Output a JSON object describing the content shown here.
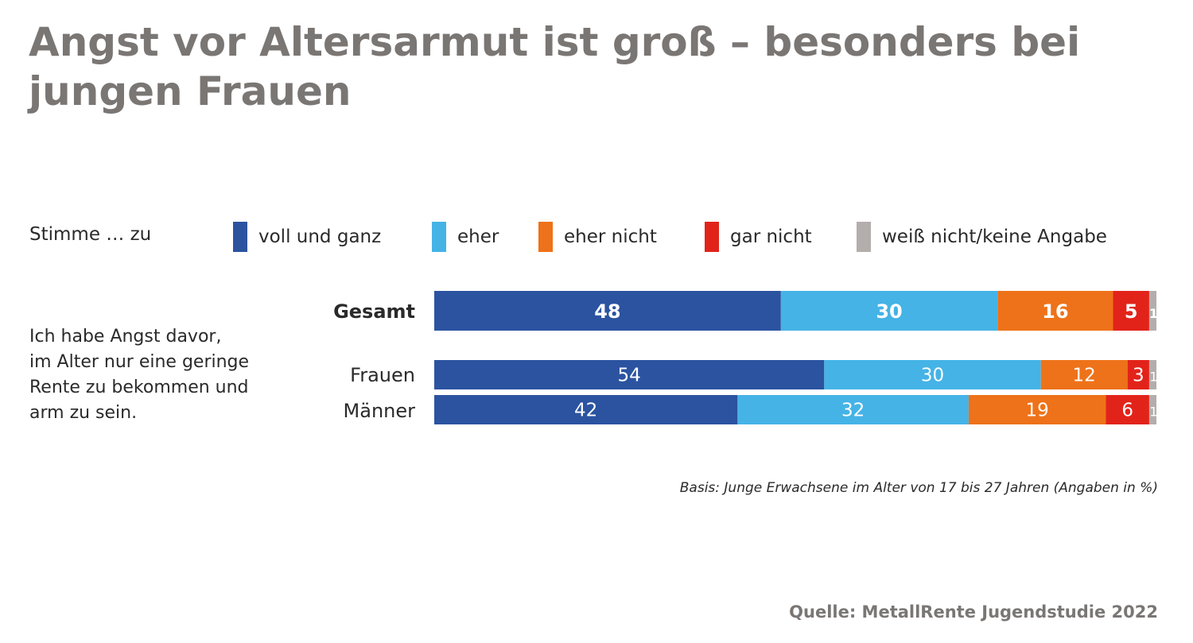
{
  "chart_data": {
    "type": "bar",
    "orientation": "horizontal",
    "stacked": true,
    "title": "Angst vor Altersarmut ist groß – besonders bei jungen Frauen",
    "question": "Ich habe Angst davor, im Alter nur eine geringe Rente zu bekommen und arm zu sein.",
    "legend_title": "Stimme … zu",
    "legend_position": "top",
    "categories": [
      "Gesamt",
      "Frauen",
      "Männer"
    ],
    "series": [
      {
        "name": "voll und ganz",
        "color": "#2b53a0",
        "values": [
          48,
          54,
          42
        ]
      },
      {
        "name": "eher",
        "color": "#45b3e6",
        "values": [
          30,
          30,
          32
        ]
      },
      {
        "name": "eher nicht",
        "color": "#ee7219",
        "values": [
          16,
          12,
          19
        ]
      },
      {
        "name": "gar nicht",
        "color": "#e2231a",
        "values": [
          5,
          3,
          6
        ]
      },
      {
        "name": "weiß nicht/keine Angabe",
        "color": "#b3aeac",
        "values": [
          1,
          1,
          1
        ]
      }
    ],
    "unit": "%",
    "xlim": [
      0,
      100
    ],
    "grid": false,
    "note": "Basis: Junge Erwachsene im Alter von 17 bis 27 Jahren (Angaben in %)",
    "source": "Quelle: MetallRente Jugendstudie 2022"
  },
  "title_line1": "Angst vor Altersarmut ist groß – besonders bei",
  "title_line2": "jungen Frauen",
  "question_lines": [
    "Ich habe Angst davor,",
    "im Alter nur eine geringe",
    "Rente zu bekommen und",
    "arm zu sein."
  ]
}
